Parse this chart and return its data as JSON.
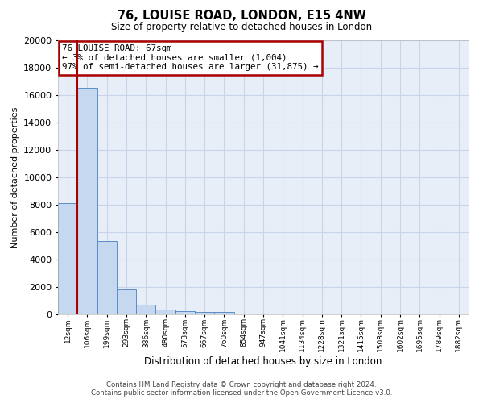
{
  "title_line1": "76, LOUISE ROAD, LONDON, E15 4NW",
  "title_line2": "Size of property relative to detached houses in London",
  "xlabel": "Distribution of detached houses by size in London",
  "ylabel": "Number of detached properties",
  "categories": [
    "12sqm",
    "106sqm",
    "199sqm",
    "293sqm",
    "386sqm",
    "480sqm",
    "573sqm",
    "667sqm",
    "760sqm",
    "854sqm",
    "947sqm",
    "1041sqm",
    "1134sqm",
    "1228sqm",
    "1321sqm",
    "1415sqm",
    "1508sqm",
    "1602sqm",
    "1695sqm",
    "1789sqm",
    "1882sqm"
  ],
  "values": [
    8100,
    16550,
    5350,
    1850,
    700,
    330,
    220,
    200,
    150,
    0,
    0,
    0,
    0,
    0,
    0,
    0,
    0,
    0,
    0,
    0,
    0
  ],
  "bar_color": "#c5d8f0",
  "bar_edge_color": "#5b8dc8",
  "annotation_title": "76 LOUISE ROAD: 67sqm",
  "annotation_line2": "← 3% of detached houses are smaller (1,004)",
  "annotation_line3": "97% of semi-detached houses are larger (31,875) →",
  "annotation_box_color": "#ffffff",
  "annotation_box_edge": "#aa0000",
  "ylim": [
    0,
    20000
  ],
  "yticks": [
    0,
    2000,
    4000,
    6000,
    8000,
    10000,
    12000,
    14000,
    16000,
    18000,
    20000
  ],
  "grid_color": "#c8d4e8",
  "bg_color": "#e8eef8",
  "footer_line1": "Contains HM Land Registry data © Crown copyright and database right 2024.",
  "footer_line2": "Contains public sector information licensed under the Open Government Licence v3.0.",
  "red_line_color": "#aa0000"
}
